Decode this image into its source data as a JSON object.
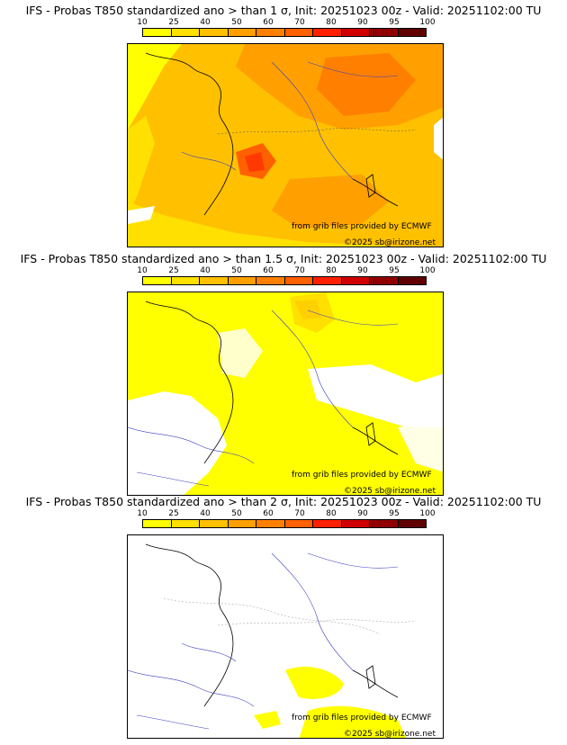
{
  "colorbar": {
    "ticks": [
      "10",
      "25",
      "40",
      "50",
      "60",
      "70",
      "80",
      "90",
      "95",
      "100"
    ],
    "colors": [
      "#ffff00",
      "#ffe000",
      "#ffc000",
      "#ffa000",
      "#ff8000",
      "#ff6000",
      "#ff2000",
      "#d00000",
      "#900000",
      "#600000"
    ]
  },
  "credits": {
    "source": "from grib files provided by ECMWF",
    "copyright": "©2025 sb@irizone.net"
  },
  "panels": [
    {
      "title": "IFS - Probas T850  standardized ano > than 1 σ, Init: 20251023 00z - Valid: 20251102:00 TU",
      "coverage": "high"
    },
    {
      "title": "IFS - Probas T850  standardized ano > than 1.5 σ, Init: 20251023 00z - Valid: 20251102:00 TU",
      "coverage": "medium"
    },
    {
      "title": "IFS - Probas T850  standardized ano > than 2 σ, Init: 20251023 00z - Valid: 20251102:00 TU",
      "coverage": "low"
    }
  ]
}
